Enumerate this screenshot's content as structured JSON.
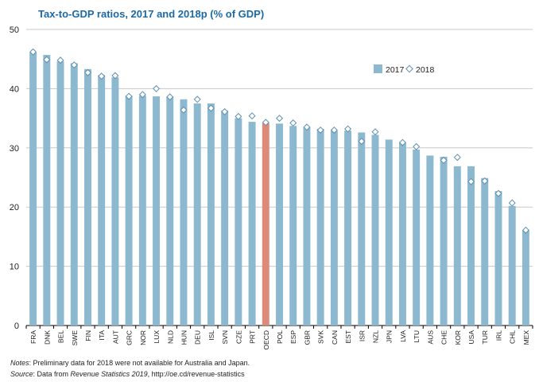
{
  "chart_data": {
    "type": "bar",
    "title": "Tax-to-GDP ratios, 2017 and 2018p (% of GDP)",
    "xlabel": "",
    "ylabel": "",
    "ylim": [
      0,
      50
    ],
    "yticks": [
      0,
      10,
      20,
      30,
      40,
      50
    ],
    "grid": true,
    "legend_position": "top-right",
    "highlight_category": "OECD",
    "categories": [
      "FRA",
      "DNK",
      "BEL",
      "SWE",
      "FIN",
      "ITA",
      "AUT",
      "GRC",
      "NOR",
      "LUX",
      "NLD",
      "HUN",
      "DEU",
      "ISL",
      "SVN",
      "CZE",
      "PRT",
      "OECD",
      "POL",
      "ESP",
      "GBR",
      "SVK",
      "CAN",
      "EST",
      "ISR",
      "NZL",
      "JPN",
      "LVA",
      "LTU",
      "AUS",
      "CHE",
      "KOR",
      "USA",
      "TUR",
      "IRL",
      "CHL",
      "MEX"
    ],
    "series": [
      {
        "name": "2017",
        "marker": "bar",
        "values": [
          46.1,
          45.7,
          44.6,
          44.3,
          43.3,
          42.3,
          41.9,
          38.8,
          38.8,
          38.7,
          38.7,
          38.2,
          37.5,
          37.5,
          36.3,
          35.0,
          34.4,
          34.2,
          34.1,
          33.7,
          33.5,
          33.2,
          32.9,
          32.9,
          32.6,
          32.2,
          31.4,
          30.9,
          29.7,
          28.7,
          28.5,
          26.9,
          26.9,
          24.9,
          22.7,
          20.2,
          16.1
        ]
      },
      {
        "name": "2018",
        "marker": "diamond",
        "values": [
          46.2,
          44.9,
          44.8,
          44.0,
          42.7,
          42.1,
          42.2,
          38.7,
          39.0,
          40.0,
          38.6,
          36.4,
          38.2,
          36.7,
          36.1,
          35.3,
          35.4,
          34.3,
          35.0,
          34.2,
          33.5,
          33.0,
          33.0,
          33.2,
          31.1,
          32.7,
          null,
          30.9,
          30.2,
          null,
          27.9,
          28.4,
          24.3,
          24.4,
          22.3,
          20.7,
          16.1
        ]
      }
    ]
  },
  "colors": {
    "bar": "#8cb8d0",
    "highlight": "#dc8b79",
    "marker_fill": "#ffffff",
    "marker_stroke": "#5e8fae",
    "grid": "#c8c8c8",
    "title": "#1b6aa5"
  },
  "notes": {
    "label": "Notes",
    "text": ": Preliminary data for 2018 were not available for Australia and Japan.",
    "source_label": "Source",
    "source_prefix": ": Data from ",
    "source_italic": "Revenue Statistics 2019",
    "source_suffix": ", http://oe.cd/revenue-statistics"
  }
}
